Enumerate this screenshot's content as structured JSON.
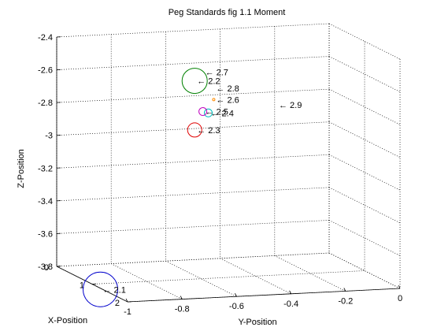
{
  "chart_data": {
    "type": "scatter",
    "title": "Peg Standards fig 1.1 Moment",
    "xlabel": "X-Position",
    "ylabel": "Y-Position",
    "zlabel": "Z-Position",
    "xlim": [
      0,
      2
    ],
    "ylim": [
      -1,
      0
    ],
    "zlim": [
      -3.8,
      -2.4
    ],
    "x_ticks": [
      "0",
      "1",
      "2"
    ],
    "y_ticks": [
      "-1",
      "-0.8",
      "-0.6",
      "-0.4",
      "-0.2",
      "0"
    ],
    "z_ticks": [
      "-2.4",
      "-2.6",
      "-2.8",
      "-3",
      "-3.2",
      "-3.4",
      "-3.6",
      "-3.8"
    ],
    "grid": true,
    "colors": {
      "blue": "#0000cc",
      "green": "#008000",
      "red": "#e00000",
      "magenta": "#bf00bf",
      "cyan": "#00bfbf",
      "orange": "#ff8c00"
    },
    "annotations": [
      {
        "label": "← 2.1",
        "x": 1.3,
        "y": -1.0,
        "z": -3.8,
        "circle": true,
        "color": "blue",
        "size": "large"
      },
      {
        "label": "← 2.2",
        "x": 0.5,
        "y": -0.55,
        "z": -2.65,
        "circle": true,
        "color": "green",
        "size": "medium"
      },
      {
        "label": "← 2.3",
        "x": 0.5,
        "y": -0.55,
        "z": -2.95,
        "circle": true,
        "color": "red",
        "size": "small"
      },
      {
        "label": "← 2.4",
        "x": 0.5,
        "y": -0.5,
        "z": -2.85,
        "circle": true,
        "color": "cyan",
        "size": "tiny"
      },
      {
        "label": "← 2.5",
        "x": 0.5,
        "y": -0.52,
        "z": -2.84,
        "circle": true,
        "color": "magenta",
        "size": "tiny"
      },
      {
        "label": "← 2.6",
        "x": 0.5,
        "y": -0.48,
        "z": -2.77,
        "circle": true,
        "color": "orange",
        "size": "dot"
      },
      {
        "label": "← 2.7",
        "x": 0.5,
        "y": -0.52,
        "z": -2.6,
        "circle": false
      },
      {
        "label": "← 2.8",
        "x": 0.5,
        "y": -0.48,
        "z": -2.7,
        "circle": false
      },
      {
        "label": "← 2.9",
        "x": 0.5,
        "y": -0.25,
        "z": -2.82,
        "circle": false
      }
    ]
  }
}
